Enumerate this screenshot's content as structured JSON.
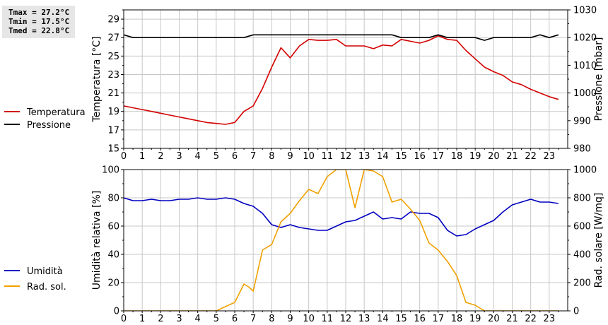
{
  "stats": {
    "tmax": "Tmax = 27.2°C",
    "tmin": "Tmin = 17.5°C",
    "tmed": "Tmed = 22.8°C"
  },
  "colors": {
    "temperature": "#d40000",
    "pressure": "#000000",
    "humidity": "#0000c0",
    "radiation": "#f0a000",
    "grid": "#c8c8c8"
  },
  "chart_data": [
    {
      "type": "line",
      "title": "",
      "xlabel": "",
      "x_ticks": [
        "0",
        "1",
        "2",
        "3",
        "4",
        "5",
        "6",
        "7",
        "8",
        "9",
        "10",
        "11",
        "12",
        "13",
        "14",
        "15",
        "16",
        "17",
        "18",
        "19",
        "20",
        "21",
        "22",
        "23"
      ],
      "xlim": [
        0,
        24
      ],
      "ylabel": "Temperatura [°C]",
      "ylim": [
        15,
        30
      ],
      "y_ticks": [
        "15",
        "17",
        "19",
        "21",
        "23",
        "25",
        "27",
        "29"
      ],
      "y2label": "Pressione [mbar]",
      "y2lim": [
        980,
        1030
      ],
      "y2_ticks": [
        "980",
        "990",
        "1000",
        "1010",
        "1020",
        "1030"
      ],
      "grid": true,
      "legend_position": "left",
      "series": [
        {
          "name": "Temperatura",
          "axis": "left",
          "x": [
            0,
            0.5,
            1,
            1.5,
            2,
            2.5,
            3,
            3.5,
            4,
            4.5,
            5,
            5.5,
            6,
            6.5,
            7,
            7.5,
            8,
            8.5,
            9,
            9.5,
            10,
            10.5,
            11,
            11.5,
            12,
            12.5,
            13,
            13.5,
            14,
            14.5,
            15,
            15.5,
            16,
            16.5,
            17,
            17.5,
            18,
            18.5,
            19,
            19.5,
            20,
            20.5,
            21,
            21.5,
            22,
            22.5,
            23,
            23.5
          ],
          "values": [
            19.6,
            19.4,
            19.2,
            19.0,
            18.8,
            18.6,
            18.4,
            18.2,
            18.0,
            17.8,
            17.7,
            17.6,
            17.8,
            19.0,
            19.6,
            21.5,
            23.8,
            25.9,
            24.8,
            26.1,
            26.8,
            26.7,
            26.7,
            26.8,
            26.1,
            26.1,
            26.1,
            25.8,
            26.2,
            26.1,
            26.8,
            26.6,
            26.4,
            26.7,
            27.2,
            26.8,
            26.7,
            25.6,
            24.7,
            23.8,
            23.3,
            22.9,
            22.2,
            21.9,
            21.4,
            21.0,
            20.6,
            20.3
          ]
        },
        {
          "name": "Pressione",
          "axis": "right",
          "x": [
            0,
            0.5,
            1,
            1.5,
            2,
            2.5,
            3,
            3.5,
            4,
            4.5,
            5,
            5.5,
            6,
            6.5,
            7,
            7.5,
            8,
            8.5,
            9,
            9.5,
            10,
            10.5,
            11,
            11.5,
            12,
            12.5,
            13,
            13.5,
            14,
            14.5,
            15,
            15.5,
            16,
            16.5,
            17,
            17.5,
            18,
            18.5,
            19,
            19.5,
            20,
            20.5,
            21,
            21.5,
            22,
            22.5,
            23,
            23.5
          ],
          "values": [
            1021,
            1020,
            1020,
            1020,
            1020,
            1020,
            1020,
            1020,
            1020,
            1020,
            1020,
            1020,
            1020,
            1020,
            1021,
            1021,
            1021,
            1021,
            1021,
            1021,
            1021,
            1021,
            1021,
            1021,
            1021,
            1021,
            1021,
            1021,
            1021,
            1021,
            1020,
            1020,
            1020,
            1020,
            1021,
            1020,
            1020,
            1020,
            1020,
            1019,
            1020,
            1020,
            1020,
            1020,
            1020,
            1021,
            1020,
            1021
          ]
        }
      ]
    },
    {
      "type": "line",
      "title": "",
      "xlabel": "",
      "x_ticks": [
        "0",
        "1",
        "2",
        "3",
        "4",
        "5",
        "6",
        "7",
        "8",
        "9",
        "10",
        "11",
        "12",
        "13",
        "14",
        "15",
        "16",
        "17",
        "18",
        "19",
        "20",
        "21",
        "22",
        "23"
      ],
      "xlim": [
        0,
        24
      ],
      "ylabel": "Umidità relativa [%]",
      "ylim": [
        0,
        100
      ],
      "y_ticks": [
        "0",
        "20",
        "40",
        "60",
        "80",
        "100"
      ],
      "y2label": "Rad. solare [W/mq]",
      "y2lim": [
        0,
        1000
      ],
      "y2_ticks": [
        "0",
        "200",
        "400",
        "600",
        "800",
        "1000"
      ],
      "grid": true,
      "legend_position": "left",
      "series": [
        {
          "name": "Umidità",
          "axis": "left",
          "x": [
            0,
            0.5,
            1,
            1.5,
            2,
            2.5,
            3,
            3.5,
            4,
            4.5,
            5,
            5.5,
            6,
            6.5,
            7,
            7.5,
            8,
            8.5,
            9,
            9.5,
            10,
            10.5,
            11,
            11.5,
            12,
            12.5,
            13,
            13.5,
            14,
            14.5,
            15,
            15.5,
            16,
            16.5,
            17,
            17.5,
            18,
            18.5,
            19,
            19.5,
            20,
            20.5,
            21,
            21.5,
            22,
            22.5,
            23,
            23.5
          ],
          "values": [
            80,
            78,
            78,
            79,
            78,
            78,
            79,
            79,
            80,
            79,
            79,
            80,
            79,
            76,
            74,
            69,
            61,
            59,
            61,
            59,
            58,
            57,
            57,
            60,
            63,
            64,
            67,
            70,
            65,
            66,
            65,
            70,
            69,
            69,
            66,
            57,
            53,
            54,
            58,
            61,
            64,
            70,
            75,
            77,
            79,
            77,
            77,
            76
          ]
        },
        {
          "name": "Rad. sol.",
          "axis": "right",
          "x": [
            0,
            0.5,
            1,
            1.5,
            2,
            2.5,
            3,
            3.5,
            4,
            4.5,
            5,
            5.5,
            6,
            6.5,
            6.75,
            7,
            7.5,
            8,
            8.5,
            9,
            9.5,
            10,
            10.5,
            11,
            11.5,
            11.75,
            12,
            12.5,
            13,
            13.5,
            14,
            14.5,
            15,
            15.5,
            16,
            16.5,
            17,
            17.5,
            18,
            18.5,
            19,
            19.5,
            20,
            20.5,
            21,
            21.5,
            22,
            22.5,
            23,
            23.5
          ],
          "values": [
            0,
            0,
            0,
            0,
            0,
            0,
            0,
            0,
            0,
            0,
            0,
            30,
            60,
            190,
            170,
            140,
            430,
            470,
            630,
            690,
            780,
            860,
            830,
            950,
            1000,
            1000,
            1000,
            730,
            1000,
            990,
            950,
            770,
            790,
            720,
            640,
            480,
            430,
            350,
            250,
            60,
            40,
            0,
            0,
            0,
            0,
            0,
            0,
            0,
            0,
            0
          ]
        }
      ]
    }
  ]
}
